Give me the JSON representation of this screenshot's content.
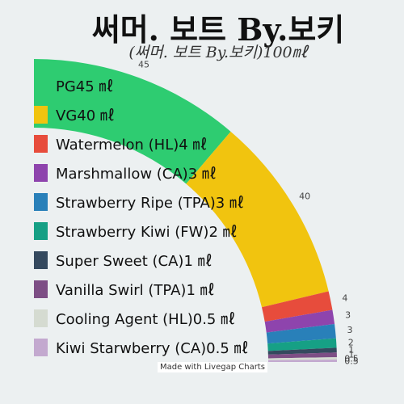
{
  "title": "써머. 보트 By.보키",
  "subtitle": "(써머. 보트 By.보키)100㎖",
  "credit": "Made with Livegap Charts",
  "chart_data": {
    "type": "pie",
    "variant": "quarter-donut",
    "title": "써머. 보트 By.보키",
    "subtitle": "(써머. 보트 By.보키)100㎖",
    "legend_position": "left",
    "slices": [
      {
        "label": "PG45 ㎖",
        "value": 45,
        "value_label": "45",
        "color": "#2ecc71"
      },
      {
        "label": "VG40 ㎖",
        "value": 40,
        "value_label": "40",
        "color": "#f1c40f"
      },
      {
        "label": "Watermelon (HL)4 ㎖",
        "value": 4,
        "value_label": "4",
        "color": "#e74c3c"
      },
      {
        "label": "Marshmallow (CA)3 ㎖",
        "value": 3,
        "value_label": "3",
        "color": "#8e44ad"
      },
      {
        "label": "Strawberry Ripe (TPA)3 ㎖",
        "value": 3,
        "value_label": "3",
        "color": "#2980b9"
      },
      {
        "label": "Strawberry Kiwi (FW)2 ㎖",
        "value": 2,
        "value_label": "2",
        "color": "#16a085"
      },
      {
        "label": "Super Sweet (CA)1 ㎖",
        "value": 1,
        "value_label": "1",
        "color": "#34495e"
      },
      {
        "label": "Vanilla Swirl (TPA)1 ㎖",
        "value": 1,
        "value_label": "1",
        "color": "#7d4e85"
      },
      {
        "label": "Cooling Agent (HL)0.5 ㎖",
        "value": 0.5,
        "value_label": "0.5",
        "color": "#d5dbd1"
      },
      {
        "label": "Kiwi Starwberry (CA)0.5 ㎖",
        "value": 0.5,
        "value_label": "0.5",
        "color": "#c3a9cf"
      }
    ]
  }
}
